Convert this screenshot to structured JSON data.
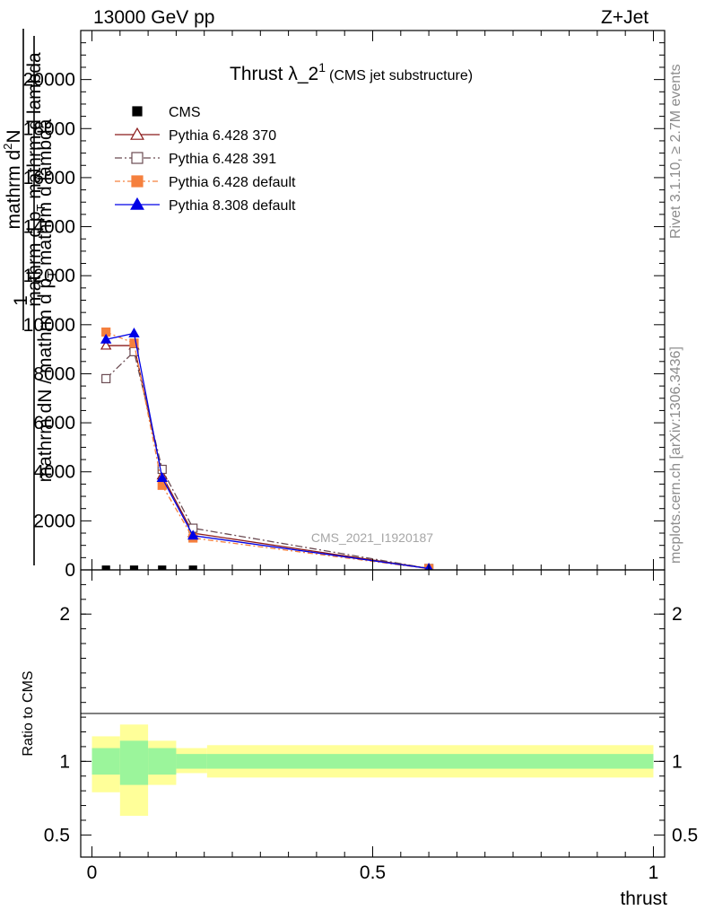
{
  "header": {
    "left": "13000 GeV pp",
    "right": "Z+Jet",
    "rivet": "Rivet 3.1.10, ≥ 2.7M events",
    "mcplots": "mcplots.cern.ch [arXiv:1306.3436]"
  },
  "chart_data": [
    {
      "type": "line",
      "title": "Thrust λ_2",
      "title_sup": "1",
      "subtitle": "(CMS jet substructure)",
      "watermark": "CMS_2021_I1920187",
      "xlabel": "thrust",
      "ylabel": {
        "numerator": "1",
        "denominator": "mathrm dN / mathrm d p",
        "denominator_sub": "T",
        "denominator_tail": " mathrm d lambda",
        "upper_numerator": "mathrm d",
        "upper_numerator_sup": "2",
        "upper_numerator_tail": "N",
        "upper_denominator": "mathrm d p",
        "upper_denominator_sub": "T",
        "upper_denominator_tail": " mathrm d lambda"
      },
      "xlim": [
        -0.02,
        1.02
      ],
      "ylim": [
        0,
        22000
      ],
      "yticks": [
        0,
        2000,
        4000,
        6000,
        8000,
        10000,
        12000,
        14000,
        16000,
        18000,
        20000
      ],
      "ytick_labels": [
        "0",
        "2000",
        "4000",
        "6000",
        "8000",
        "10000",
        "12000",
        "14000",
        "16000",
        "18000",
        "20000"
      ],
      "legend_position": "top-left",
      "series": [
        {
          "name": "CMS",
          "color": "#000000",
          "marker": "square-filled",
          "dash": "",
          "x": [
            0.025,
            0.075,
            0.125,
            0.18
          ],
          "y": [
            10,
            10,
            10,
            10
          ]
        },
        {
          "name": "Pythia 6.428 370",
          "color": "#8b1a1a",
          "marker": "triangle-open",
          "dash": "",
          "x": [
            0.025,
            0.075,
            0.125,
            0.18,
            0.6
          ],
          "y": [
            9150,
            9150,
            3850,
            1500,
            60
          ]
        },
        {
          "name": "Pythia 6.428 391",
          "color": "#6b4b52",
          "marker": "square-open",
          "dash": "8,3,2,3",
          "x": [
            0.025,
            0.075,
            0.125,
            0.18,
            0.6
          ],
          "y": [
            7800,
            8900,
            4100,
            1700,
            60
          ]
        },
        {
          "name": "Pythia 6.428 default",
          "color": "#f5803e",
          "marker": "square-filled",
          "dash": "6,3,2,3",
          "x": [
            0.025,
            0.075,
            0.125,
            0.18,
            0.6
          ],
          "y": [
            9700,
            9250,
            3450,
            1300,
            50
          ]
        },
        {
          "name": "Pythia 8.308 default",
          "color": "#0000e6",
          "marker": "triangle-filled",
          "dash": "",
          "x": [
            0.025,
            0.075,
            0.125,
            0.18,
            0.6
          ],
          "y": [
            9400,
            9650,
            3750,
            1400,
            55
          ]
        }
      ]
    },
    {
      "type": "area",
      "ylabel": "Ratio to CMS",
      "xlabel": "thrust",
      "xlim": [
        -0.02,
        1.02
      ],
      "ylim": [
        0.35,
        2.3
      ],
      "xticks": [
        0,
        0.5,
        1
      ],
      "xtick_labels": [
        "0",
        "0.5",
        "1"
      ],
      "yticks": [
        0.5,
        1,
        2
      ],
      "ytick_labels": [
        "0.5",
        "1",
        "2"
      ],
      "bands": [
        {
          "x0": 0.0,
          "x1": 0.05,
          "inner": [
            0.91,
            1.09
          ],
          "outer": [
            0.79,
            1.17
          ]
        },
        {
          "x0": 0.05,
          "x1": 0.1,
          "inner": [
            0.84,
            1.14
          ],
          "outer": [
            0.63,
            1.25
          ]
        },
        {
          "x0": 0.1,
          "x1": 0.15,
          "inner": [
            0.91,
            1.09
          ],
          "outer": [
            0.84,
            1.14
          ]
        },
        {
          "x0": 0.15,
          "x1": 0.205,
          "inner": [
            0.95,
            1.05
          ],
          "outer": [
            0.92,
            1.09
          ]
        },
        {
          "x0": 0.205,
          "x1": 1.0,
          "inner": [
            0.95,
            1.05
          ],
          "outer": [
            0.89,
            1.11
          ]
        }
      ],
      "band_colors": {
        "inner": "#9bf59b",
        "outer": "#ffff99"
      }
    }
  ]
}
